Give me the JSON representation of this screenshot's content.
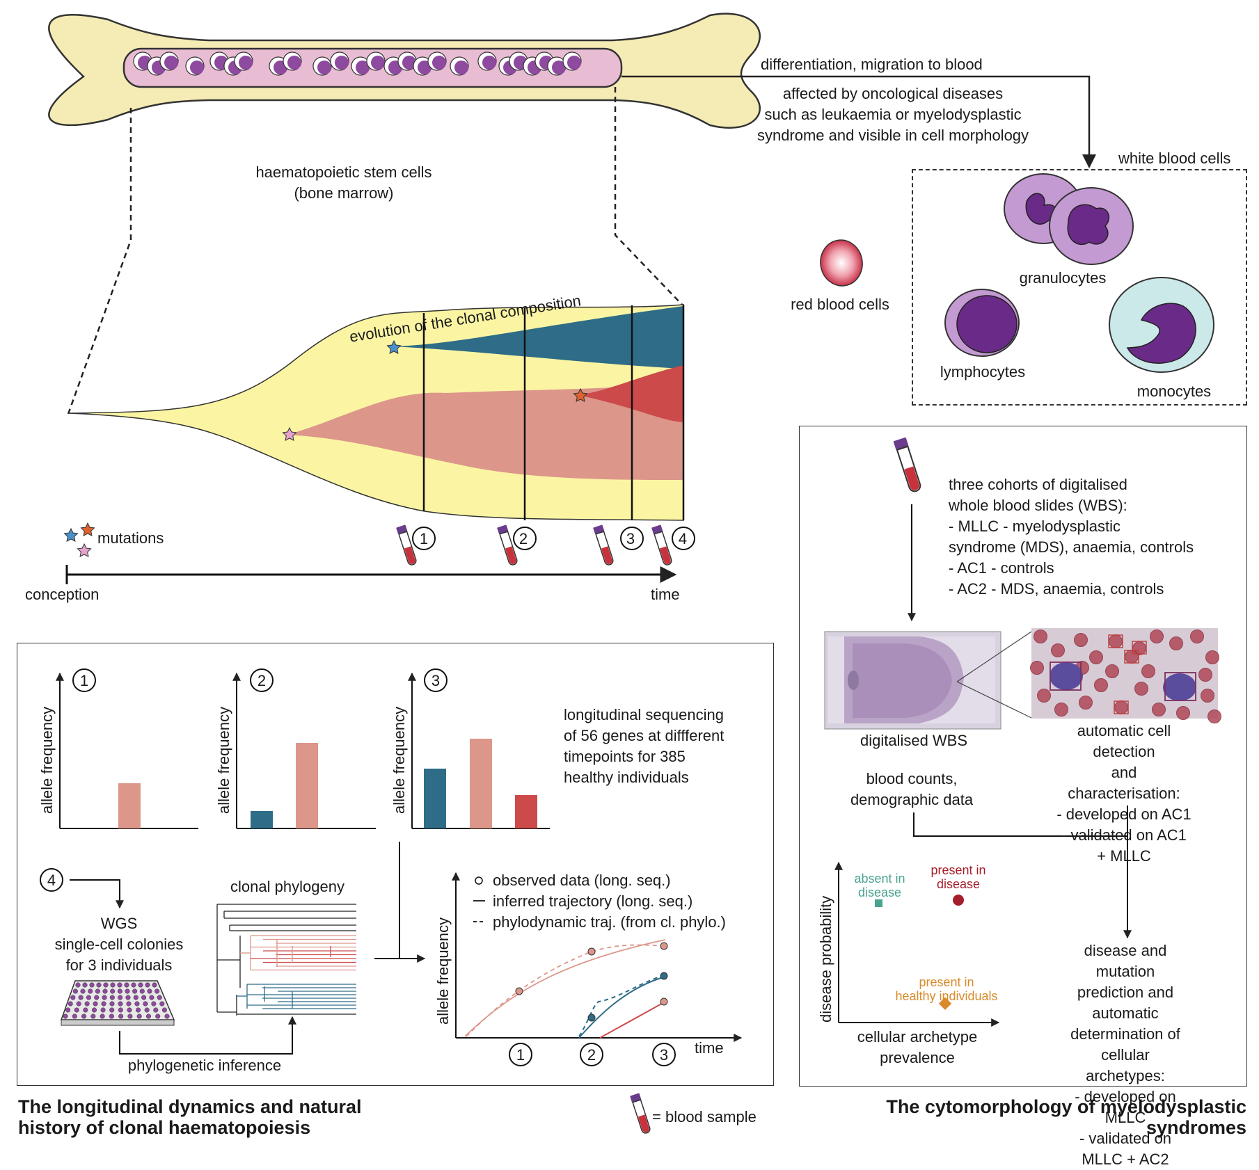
{
  "bone": {
    "label": "haematopoietic stem cells\n(bone marrow)"
  },
  "migration": {
    "arrow_label": "differentiation, migration to blood",
    "disease_note": "affected by oncological diseases\nsuch as leukaemia or myelodysplastic\nsyndrome and visible in cell morphology"
  },
  "blood_cells": {
    "box_title": "white blood cells",
    "red": "red blood cells",
    "granulocytes": "granulocytes",
    "lymphocytes": "lymphocytes",
    "monocytes": "monocytes"
  },
  "evolution": {
    "title": "evolution of the clonal composition",
    "mutations": "mutations",
    "conception": "conception",
    "time": "time",
    "samples": [
      "1",
      "2",
      "3",
      "4"
    ]
  },
  "left_panel": {
    "charts": [
      {
        "num": "1",
        "ylabel": "allele frequency"
      },
      {
        "num": "2",
        "ylabel": "allele frequency"
      },
      {
        "num": "3",
        "ylabel": "allele frequency"
      }
    ],
    "seq_text": "longitudinal sequencing\nof 56 genes at diffferent\ntimepoints for 385\nhealthy individuals",
    "step4": "4",
    "wgs": "WGS\nsingle-cell colonies\nfor 3 individuals",
    "phylogeny": "clonal phylogeny",
    "phylo_inference": "phylogenetic inference",
    "legend": {
      "observed": "observed data (long. seq.)",
      "inferred": "inferred trajectory (long. seq.)",
      "phylodynamic": "phylodynamic traj. (from cl. phylo.)"
    },
    "traj_ylabel": "allele frequency",
    "traj_xlabel": "time",
    "traj_ticks": [
      "1",
      "2",
      "3"
    ],
    "title": "The longitudinal dynamics and natural\nhistory of clonal haematopoiesis",
    "blood_sample": "= blood sample"
  },
  "right_panel": {
    "cohorts": "three cohorts of digitalised\nwhole blood slides (WBS):\n- MLLC - myelodysplastic\nsyndrome (MDS), anaemia, controls\n- AC1 - controls\n- AC2 - MDS, anaemia, controls",
    "wbs": "digitalised WBS",
    "detection": "automatic cell detection\nand characterisation:\n- developed on AC1\n- validated on AC1 + MLLC",
    "counts": "blood counts,\ndemographic data",
    "scatter_ylabel": "disease probability",
    "scatter_xlabel": "cellular archetype\nprevalence",
    "absent": "absent in\ndisease",
    "present": "present in\ndisease",
    "healthy": "present in\nhealthy individuals",
    "prediction": "disease and mutation\nprediction and automatic\ndetermination of cellular\narchetypes:\n- developed on MLLC\n- validated on MLLC + AC2",
    "title": "The cytomorphology of myelodysplastic\nsyndromes"
  },
  "colors": {
    "bone": "#f5ebb4",
    "marrow": "#e8bcd2",
    "cell": "#8e4a9e",
    "yellow": "#fbf5a3",
    "teal": "#2e6c87",
    "salmon": "#dc968a",
    "red": "#cc4a4a",
    "green": "#4aa38f",
    "darkred": "#a51e2b",
    "orange": "#d98a2a"
  }
}
